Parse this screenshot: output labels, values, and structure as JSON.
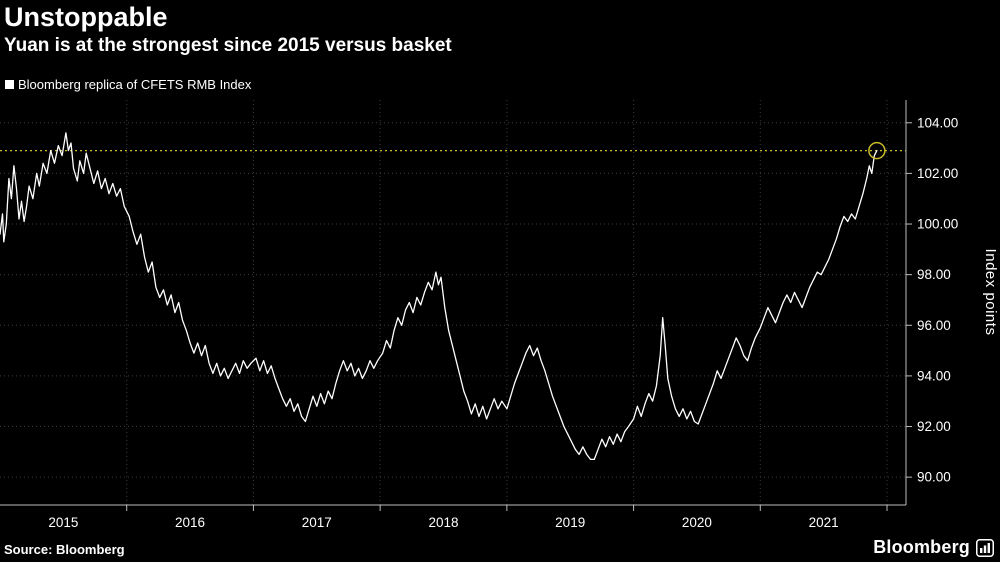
{
  "header": {
    "title": "Unstoppable",
    "subtitle": "Yuan is at the strongest since 2015 versus basket"
  },
  "legend": {
    "label": "Bloomberg replica of CFETS RMB Index"
  },
  "footer": {
    "source": "Source: Bloomberg",
    "brand": "Bloomberg"
  },
  "colors": {
    "background": "#000000",
    "line": "#ffffff",
    "highlight": "#c9bb2a",
    "grid": "#3c3c3c",
    "axis": "#bdbdbd",
    "text": "#ffffff"
  },
  "chart_data": {
    "type": "line",
    "title": "Unstoppable",
    "subtitle": "Yuan is at the strongest since 2015 versus basket",
    "xlabel": "",
    "ylabel": "Index points",
    "legend_position": "top-left",
    "y_axis_side": "right",
    "grid": true,
    "xlim": [
      2015.0,
      2022.15
    ],
    "ylim": [
      88.9,
      104.9
    ],
    "y_ticks": [
      90,
      92,
      94,
      96,
      98,
      100,
      102,
      104
    ],
    "x_ticks": [
      2015,
      2016,
      2017,
      2018,
      2019,
      2020,
      2021
    ],
    "x_gridlines": [
      2016,
      2017,
      2018,
      2019,
      2020,
      2021,
      2022
    ],
    "highlight_line": {
      "value": 102.9,
      "color": "#c9bb2a",
      "style": "dotted"
    },
    "endpoint_marker": {
      "x": 2021.92,
      "y": 102.9,
      "color": "#c9bb2a",
      "radius": 8
    },
    "series": [
      {
        "name": "Bloomberg replica of CFETS RMB Index",
        "color": "#ffffff",
        "points": [
          [
            2015.0,
            99.6
          ],
          [
            2015.02,
            100.4
          ],
          [
            2015.03,
            99.3
          ],
          [
            2015.05,
            100.0
          ],
          [
            2015.07,
            101.8
          ],
          [
            2015.09,
            101.0
          ],
          [
            2015.11,
            102.3
          ],
          [
            2015.13,
            101.4
          ],
          [
            2015.15,
            100.2
          ],
          [
            2015.17,
            100.9
          ],
          [
            2015.19,
            100.1
          ],
          [
            2015.21,
            100.7
          ],
          [
            2015.23,
            101.5
          ],
          [
            2015.26,
            101.0
          ],
          [
            2015.29,
            102.0
          ],
          [
            2015.31,
            101.5
          ],
          [
            2015.34,
            102.4
          ],
          [
            2015.37,
            102.0
          ],
          [
            2015.4,
            102.9
          ],
          [
            2015.43,
            102.4
          ],
          [
            2015.46,
            103.1
          ],
          [
            2015.49,
            102.7
          ],
          [
            2015.52,
            103.6
          ],
          [
            2015.54,
            102.9
          ],
          [
            2015.56,
            103.2
          ],
          [
            2015.58,
            102.2
          ],
          [
            2015.61,
            101.7
          ],
          [
            2015.63,
            102.5
          ],
          [
            2015.66,
            102.0
          ],
          [
            2015.68,
            102.8
          ],
          [
            2015.71,
            102.2
          ],
          [
            2015.74,
            101.6
          ],
          [
            2015.77,
            102.1
          ],
          [
            2015.8,
            101.4
          ],
          [
            2015.83,
            101.8
          ],
          [
            2015.86,
            101.2
          ],
          [
            2015.89,
            101.6
          ],
          [
            2015.92,
            101.1
          ],
          [
            2015.95,
            101.4
          ],
          [
            2015.98,
            100.7
          ],
          [
            2016.02,
            100.3
          ],
          [
            2016.05,
            99.7
          ],
          [
            2016.08,
            99.2
          ],
          [
            2016.11,
            99.6
          ],
          [
            2016.14,
            98.7
          ],
          [
            2016.17,
            98.1
          ],
          [
            2016.2,
            98.5
          ],
          [
            2016.23,
            97.5
          ],
          [
            2016.26,
            97.1
          ],
          [
            2016.29,
            97.4
          ],
          [
            2016.32,
            96.8
          ],
          [
            2016.35,
            97.2
          ],
          [
            2016.38,
            96.5
          ],
          [
            2016.41,
            96.9
          ],
          [
            2016.44,
            96.2
          ],
          [
            2016.47,
            95.8
          ],
          [
            2016.5,
            95.3
          ],
          [
            2016.53,
            94.9
          ],
          [
            2016.56,
            95.3
          ],
          [
            2016.59,
            94.8
          ],
          [
            2016.62,
            95.2
          ],
          [
            2016.65,
            94.5
          ],
          [
            2016.68,
            94.1
          ],
          [
            2016.71,
            94.5
          ],
          [
            2016.74,
            94.0
          ],
          [
            2016.77,
            94.3
          ],
          [
            2016.8,
            93.9
          ],
          [
            2016.83,
            94.2
          ],
          [
            2016.86,
            94.5
          ],
          [
            2016.89,
            94.1
          ],
          [
            2016.92,
            94.6
          ],
          [
            2016.95,
            94.3
          ],
          [
            2016.98,
            94.5
          ],
          [
            2017.02,
            94.7
          ],
          [
            2017.05,
            94.2
          ],
          [
            2017.08,
            94.6
          ],
          [
            2017.11,
            94.1
          ],
          [
            2017.14,
            94.4
          ],
          [
            2017.17,
            93.9
          ],
          [
            2017.2,
            93.5
          ],
          [
            2017.23,
            93.1
          ],
          [
            2017.26,
            92.8
          ],
          [
            2017.29,
            93.1
          ],
          [
            2017.32,
            92.6
          ],
          [
            2017.35,
            92.9
          ],
          [
            2017.38,
            92.4
          ],
          [
            2017.41,
            92.2
          ],
          [
            2017.44,
            92.7
          ],
          [
            2017.47,
            93.2
          ],
          [
            2017.5,
            92.8
          ],
          [
            2017.53,
            93.3
          ],
          [
            2017.56,
            92.9
          ],
          [
            2017.59,
            93.4
          ],
          [
            2017.62,
            93.1
          ],
          [
            2017.65,
            93.7
          ],
          [
            2017.68,
            94.2
          ],
          [
            2017.71,
            94.6
          ],
          [
            2017.74,
            94.2
          ],
          [
            2017.77,
            94.5
          ],
          [
            2017.8,
            94.0
          ],
          [
            2017.83,
            94.3
          ],
          [
            2017.86,
            93.9
          ],
          [
            2017.89,
            94.2
          ],
          [
            2017.92,
            94.6
          ],
          [
            2017.95,
            94.3
          ],
          [
            2017.98,
            94.6
          ],
          [
            2018.02,
            94.9
          ],
          [
            2018.05,
            95.4
          ],
          [
            2018.08,
            95.1
          ],
          [
            2018.11,
            95.8
          ],
          [
            2018.14,
            96.3
          ],
          [
            2018.17,
            96.0
          ],
          [
            2018.2,
            96.6
          ],
          [
            2018.23,
            96.9
          ],
          [
            2018.26,
            96.5
          ],
          [
            2018.29,
            97.1
          ],
          [
            2018.32,
            96.8
          ],
          [
            2018.35,
            97.3
          ],
          [
            2018.38,
            97.7
          ],
          [
            2018.41,
            97.4
          ],
          [
            2018.44,
            98.1
          ],
          [
            2018.46,
            97.6
          ],
          [
            2018.48,
            97.9
          ],
          [
            2018.51,
            96.7
          ],
          [
            2018.54,
            95.8
          ],
          [
            2018.57,
            95.2
          ],
          [
            2018.6,
            94.6
          ],
          [
            2018.63,
            94.0
          ],
          [
            2018.66,
            93.4
          ],
          [
            2018.69,
            93.0
          ],
          [
            2018.72,
            92.5
          ],
          [
            2018.75,
            92.9
          ],
          [
            2018.78,
            92.4
          ],
          [
            2018.81,
            92.8
          ],
          [
            2018.84,
            92.3
          ],
          [
            2018.87,
            92.7
          ],
          [
            2018.9,
            93.1
          ],
          [
            2018.93,
            92.7
          ],
          [
            2018.96,
            93.0
          ],
          [
            2019.0,
            92.7
          ],
          [
            2019.03,
            93.2
          ],
          [
            2019.06,
            93.7
          ],
          [
            2019.09,
            94.1
          ],
          [
            2019.12,
            94.5
          ],
          [
            2019.15,
            94.9
          ],
          [
            2019.18,
            95.2
          ],
          [
            2019.21,
            94.8
          ],
          [
            2019.24,
            95.1
          ],
          [
            2019.27,
            94.6
          ],
          [
            2019.3,
            94.2
          ],
          [
            2019.33,
            93.7
          ],
          [
            2019.36,
            93.2
          ],
          [
            2019.39,
            92.8
          ],
          [
            2019.42,
            92.4
          ],
          [
            2019.45,
            92.0
          ],
          [
            2019.48,
            91.7
          ],
          [
            2019.51,
            91.4
          ],
          [
            2019.54,
            91.1
          ],
          [
            2019.57,
            90.9
          ],
          [
            2019.6,
            91.2
          ],
          [
            2019.63,
            90.9
          ],
          [
            2019.66,
            90.7
          ],
          [
            2019.69,
            90.7
          ],
          [
            2019.72,
            91.1
          ],
          [
            2019.75,
            91.5
          ],
          [
            2019.78,
            91.2
          ],
          [
            2019.81,
            91.6
          ],
          [
            2019.84,
            91.3
          ],
          [
            2019.87,
            91.7
          ],
          [
            2019.9,
            91.4
          ],
          [
            2019.93,
            91.8
          ],
          [
            2019.96,
            92.0
          ],
          [
            2020.0,
            92.3
          ],
          [
            2020.03,
            92.8
          ],
          [
            2020.06,
            92.4
          ],
          [
            2020.09,
            92.9
          ],
          [
            2020.12,
            93.3
          ],
          [
            2020.15,
            93.0
          ],
          [
            2020.18,
            93.6
          ],
          [
            2020.21,
            94.8
          ],
          [
            2020.23,
            96.3
          ],
          [
            2020.25,
            95.2
          ],
          [
            2020.27,
            93.9
          ],
          [
            2020.3,
            93.2
          ],
          [
            2020.33,
            92.7
          ],
          [
            2020.36,
            92.4
          ],
          [
            2020.39,
            92.7
          ],
          [
            2020.42,
            92.3
          ],
          [
            2020.45,
            92.6
          ],
          [
            2020.48,
            92.2
          ],
          [
            2020.51,
            92.1
          ],
          [
            2020.54,
            92.5
          ],
          [
            2020.57,
            92.9
          ],
          [
            2020.6,
            93.3
          ],
          [
            2020.63,
            93.7
          ],
          [
            2020.66,
            94.2
          ],
          [
            2020.69,
            93.9
          ],
          [
            2020.72,
            94.3
          ],
          [
            2020.75,
            94.7
          ],
          [
            2020.78,
            95.1
          ],
          [
            2020.81,
            95.5
          ],
          [
            2020.84,
            95.2
          ],
          [
            2020.87,
            94.8
          ],
          [
            2020.9,
            94.6
          ],
          [
            2020.93,
            95.1
          ],
          [
            2020.96,
            95.5
          ],
          [
            2021.0,
            95.9
          ],
          [
            2021.03,
            96.3
          ],
          [
            2021.06,
            96.7
          ],
          [
            2021.09,
            96.4
          ],
          [
            2021.12,
            96.1
          ],
          [
            2021.15,
            96.5
          ],
          [
            2021.18,
            96.9
          ],
          [
            2021.21,
            97.2
          ],
          [
            2021.24,
            96.9
          ],
          [
            2021.27,
            97.3
          ],
          [
            2021.3,
            97.0
          ],
          [
            2021.33,
            96.7
          ],
          [
            2021.36,
            97.1
          ],
          [
            2021.39,
            97.5
          ],
          [
            2021.42,
            97.8
          ],
          [
            2021.45,
            98.1
          ],
          [
            2021.48,
            98.0
          ],
          [
            2021.51,
            98.3
          ],
          [
            2021.54,
            98.6
          ],
          [
            2021.57,
            99.0
          ],
          [
            2021.6,
            99.4
          ],
          [
            2021.63,
            99.9
          ],
          [
            2021.66,
            100.3
          ],
          [
            2021.69,
            100.1
          ],
          [
            2021.72,
            100.4
          ],
          [
            2021.75,
            100.2
          ],
          [
            2021.78,
            100.7
          ],
          [
            2021.81,
            101.2
          ],
          [
            2021.84,
            101.8
          ],
          [
            2021.86,
            102.3
          ],
          [
            2021.88,
            102.0
          ],
          [
            2021.9,
            102.7
          ],
          [
            2021.92,
            102.9
          ]
        ]
      }
    ]
  }
}
